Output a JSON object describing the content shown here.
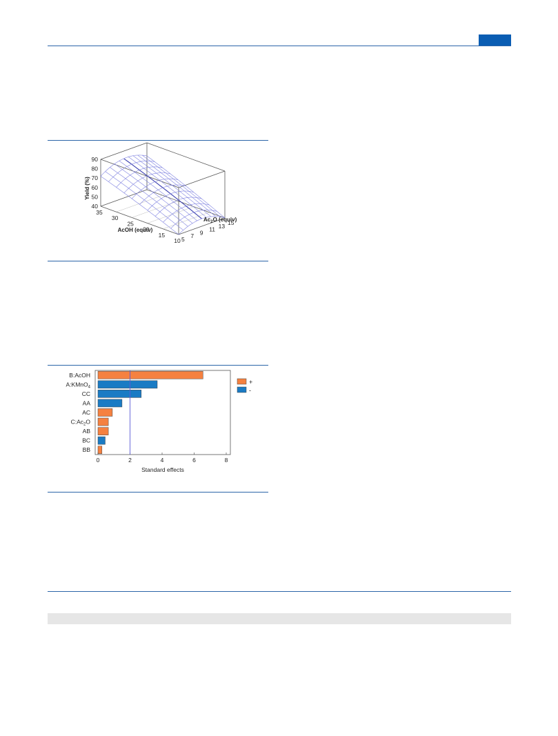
{
  "colors": {
    "rule": "#2a64a8",
    "header_tab": "#0a5db3",
    "positive": "#f58140",
    "negative": "#1a7bc4",
    "mesh": "#7f82e0",
    "mesh_ridge": "#3b3fb0",
    "reference_line": "#5b5bd6",
    "strip": "#e6e6e6"
  },
  "chart_data": [
    {
      "type": "surface",
      "zlabel": "Yield (%)",
      "xlabel": "AcOH (equiv)",
      "ylabel_prefix": "Ac",
      "ylabel_sub": "2",
      "ylabel_suffix": "O (equiv)",
      "z_ticks": [
        "90",
        "80",
        "70",
        "60",
        "50",
        "40"
      ],
      "x_ticks": [
        "35",
        "30",
        "25",
        "20",
        "15",
        "10"
      ],
      "y_ticks": [
        "5",
        "7",
        "9",
        "11",
        "13",
        "15"
      ],
      "zlim": [
        40,
        90
      ],
      "xlim": [
        35,
        10
      ],
      "ylim": [
        5,
        15
      ]
    },
    {
      "type": "bar",
      "orientation": "horizontal",
      "xlabel": "Standard effects",
      "x_ticks": [
        "0",
        "2",
        "4",
        "6",
        "8"
      ],
      "xlim": [
        0,
        8
      ],
      "reference_line": 2,
      "legend": {
        "placement": "right",
        "entries": [
          {
            "label": "+",
            "sign": "positive"
          },
          {
            "label": "-",
            "sign": "negative"
          }
        ]
      },
      "bars": [
        {
          "main": "B:AcOH",
          "sub": "",
          "tail": "",
          "value": 6.55,
          "sign": "positive"
        },
        {
          "main": "A:KMnO",
          "sub": "4",
          "tail": "",
          "value": 3.7,
          "sign": "negative"
        },
        {
          "main": "CC",
          "sub": "",
          "tail": "",
          "value": 2.7,
          "sign": "negative"
        },
        {
          "main": "AA",
          "sub": "",
          "tail": "",
          "value": 1.5,
          "sign": "negative"
        },
        {
          "main": "AC",
          "sub": "",
          "tail": "",
          "value": 0.9,
          "sign": "positive"
        },
        {
          "main": "C:Ac",
          "sub": "2",
          "tail": "O",
          "value": 0.65,
          "sign": "positive"
        },
        {
          "main": "AB",
          "sub": "",
          "tail": "",
          "value": 0.65,
          "sign": "positive"
        },
        {
          "main": "BC",
          "sub": "",
          "tail": "",
          "value": 0.45,
          "sign": "negative"
        },
        {
          "main": "BB",
          "sub": "",
          "tail": "",
          "value": 0.25,
          "sign": "positive"
        }
      ]
    }
  ]
}
